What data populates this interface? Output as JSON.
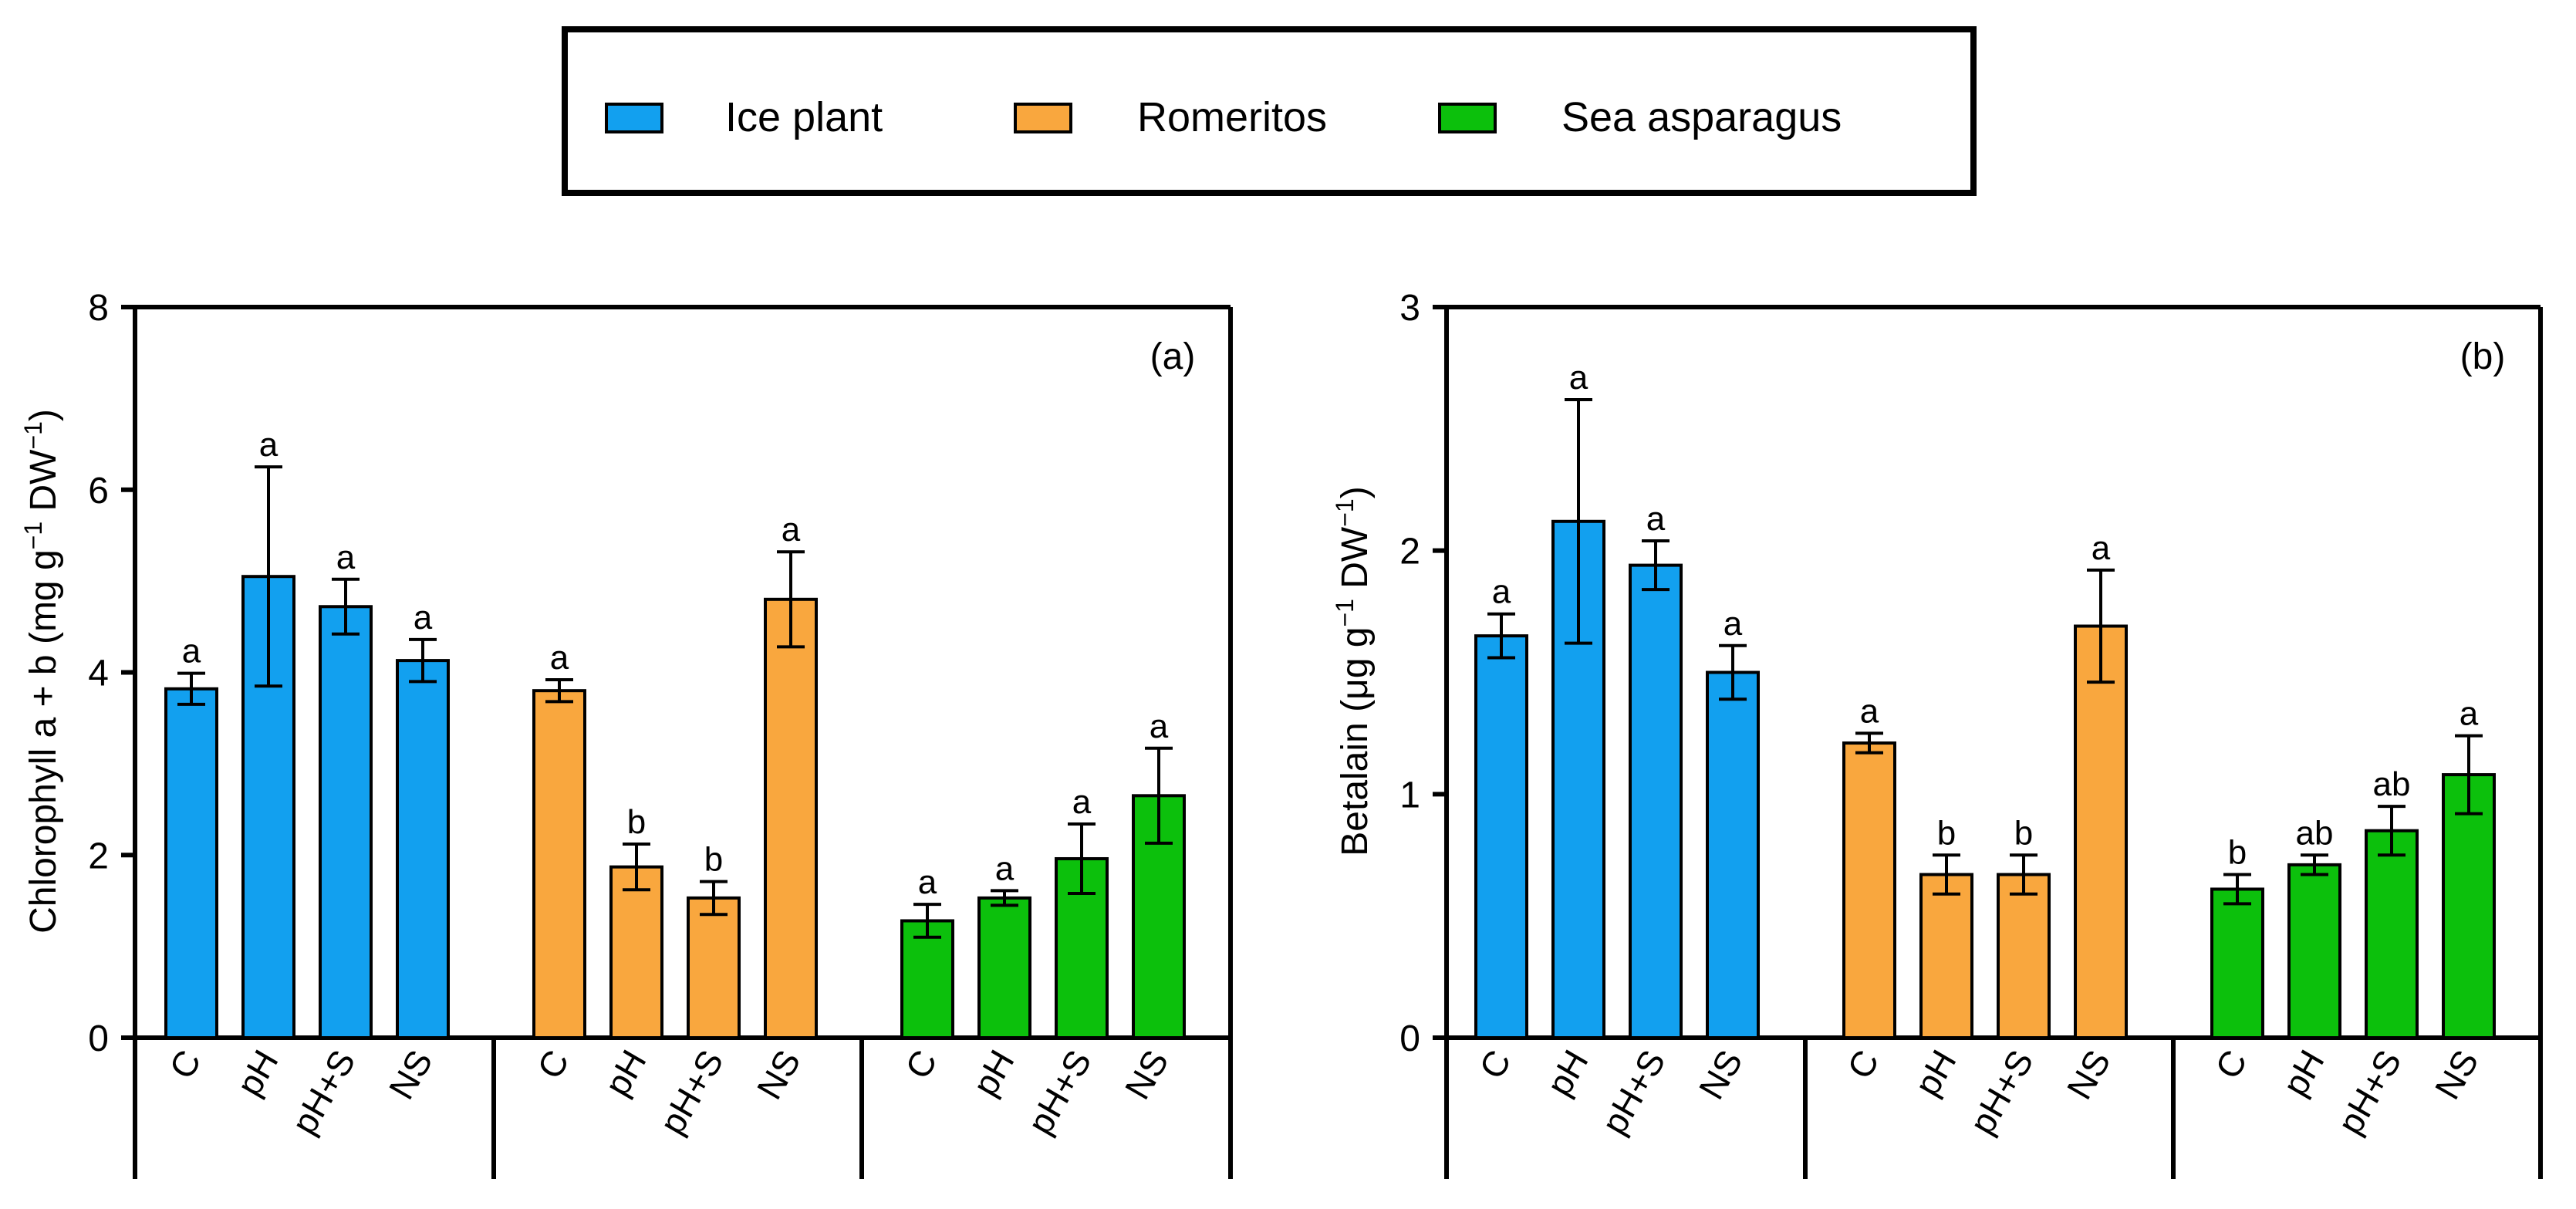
{
  "legend": [
    {
      "name": "Ice plant",
      "color": "#12A0EF"
    },
    {
      "name": "Romeritos",
      "color": "#F9A73E"
    },
    {
      "name": "Sea asparagus",
      "color": "#0CC00C"
    }
  ],
  "chart_data": [
    {
      "type": "bar",
      "panel_label": "(a)",
      "ylabel": {
        "main": "Chlorophyll a + b (mg g",
        "sup1": "−1",
        "mid": " DW",
        "sup2": "−1",
        "end": ")"
      },
      "ylim": [
        0,
        8
      ],
      "yticks": [
        "0",
        "2",
        "4",
        "6",
        "8"
      ],
      "categories": [
        "C",
        "pH",
        "pH+S",
        "NS"
      ],
      "series": [
        {
          "name": "Ice plant",
          "values": [
            3.82,
            5.05,
            4.72,
            4.13
          ],
          "errors": [
            0.17,
            1.2,
            0.3,
            0.23
          ],
          "letters": [
            "a",
            "a",
            "a",
            "a"
          ]
        },
        {
          "name": "Romeritos",
          "values": [
            3.8,
            1.87,
            1.53,
            4.8
          ],
          "errors": [
            0.12,
            0.25,
            0.18,
            0.52
          ],
          "letters": [
            "a",
            "b",
            "b",
            "a"
          ]
        },
        {
          "name": "Sea asparagus",
          "values": [
            1.28,
            1.53,
            1.96,
            2.65
          ],
          "errors": [
            0.18,
            0.08,
            0.38,
            0.52
          ],
          "letters": [
            "a",
            "a",
            "a",
            "a"
          ]
        }
      ]
    },
    {
      "type": "bar",
      "panel_label": "(b)",
      "ylabel": {
        "main": "Betalain (μg g",
        "sup1": "−1",
        "mid": " DW",
        "sup2": "−1",
        "end": ")"
      },
      "ylim": [
        0,
        3
      ],
      "yticks": [
        "0",
        "1",
        "2",
        "3"
      ],
      "categories": [
        "C",
        "pH",
        "pH+S",
        "NS"
      ],
      "series": [
        {
          "name": "Ice plant",
          "values": [
            1.65,
            2.12,
            1.94,
            1.5
          ],
          "errors": [
            0.09,
            0.5,
            0.1,
            0.11
          ],
          "letters": [
            "a",
            "a",
            "a",
            "a"
          ]
        },
        {
          "name": "Romeritos",
          "values": [
            1.21,
            0.67,
            0.67,
            1.69
          ],
          "errors": [
            0.04,
            0.08,
            0.08,
            0.23
          ],
          "letters": [
            "a",
            "b",
            "b",
            "a"
          ]
        },
        {
          "name": "Sea asparagus",
          "values": [
            0.61,
            0.71,
            0.85,
            1.08
          ],
          "errors": [
            0.06,
            0.04,
            0.1,
            0.16
          ],
          "letters": [
            "b",
            "ab",
            "ab",
            "a"
          ]
        }
      ]
    }
  ]
}
